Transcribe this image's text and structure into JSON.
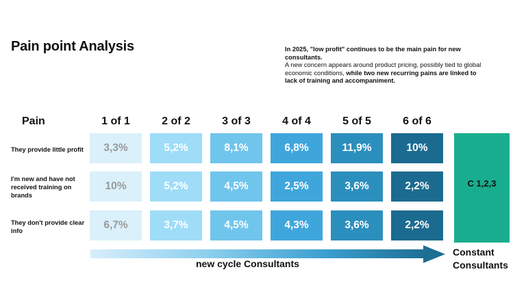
{
  "title": "Pain point Analysis",
  "summary": {
    "line1": "In 2025, \"low profit\" continues to be the main pain for new consultants.",
    "line2_normal": "A new concern appears around product pricing, possibly tied to global economic conditions, ",
    "line2_bold": "while two new recurring pains are linked to lack of training and accompaniment."
  },
  "headers": {
    "pain": "Pain",
    "cycles": [
      "1 of 1",
      "2 of 2",
      "3 of 3",
      "4 of 4",
      "5 of 5",
      "6 of 6"
    ]
  },
  "rows": [
    {
      "label": "They provide little profit",
      "values": [
        "3,3%",
        "5,2%",
        "8,1%",
        "6,8%",
        "11,9%",
        "10%"
      ]
    },
    {
      "label": "I'm new and have not received training on brands",
      "values": [
        "10%",
        "5,2%",
        "4,5%",
        "2,5%",
        "3,6%",
        "2,2%"
      ]
    },
    {
      "label": "They  don't provide clear info",
      "values": [
        "6,7%",
        "3,7%",
        "4,5%",
        "4,3%",
        "3,6%",
        "2,2%"
      ]
    }
  ],
  "column_colors": [
    "#daf0fb",
    "#9fdcf7",
    "#70c5ec",
    "#3fa6dc",
    "#2b8fbd",
    "#1b6b90"
  ],
  "first_column_text_color": "#9a9a9a",
  "constant": {
    "code": "C 1,2,3",
    "color": "#18ad8e"
  },
  "arrow_label": "new cycle Consultants",
  "constant_label": [
    "Constant",
    "Consultants"
  ]
}
